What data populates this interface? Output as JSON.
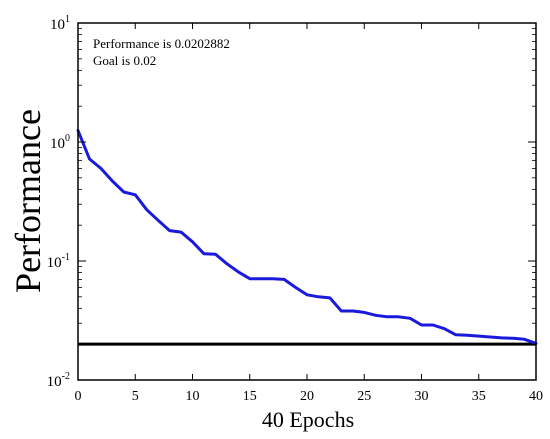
{
  "chart_data": {
    "type": "line",
    "title": "",
    "annotations": [
      "Performance is 0.0202882",
      "Goal is 0.02"
    ],
    "xlabel": "40 Epochs",
    "ylabel": "Performance",
    "xlim": [
      0,
      40
    ],
    "ylim": [
      0.01,
      10
    ],
    "yscale": "log",
    "grid": false,
    "x_ticks": [
      0,
      5,
      10,
      15,
      20,
      25,
      30,
      35,
      40
    ],
    "y_ticks": [
      {
        "value": 10,
        "base": "10",
        "exp": "1"
      },
      {
        "value": 1,
        "base": "10",
        "exp": "0"
      },
      {
        "value": 0.1,
        "base": "10",
        "exp": "-1"
      },
      {
        "value": 0.01,
        "base": "10",
        "exp": "-2"
      }
    ],
    "goal": {
      "value": 0.02,
      "color": "#000000"
    },
    "series": [
      {
        "color": "#1a1adc",
        "x": [
          0,
          1,
          2,
          3,
          4,
          5,
          6,
          7,
          8,
          9,
          10,
          11,
          12,
          13,
          14,
          15,
          16,
          17,
          18,
          19,
          20,
          21,
          22,
          23,
          24,
          25,
          26,
          27,
          28,
          29,
          30,
          31,
          32,
          33,
          34,
          35,
          36,
          37,
          38,
          39,
          40
        ],
        "y": [
          1.25,
          0.72,
          0.6,
          0.47,
          0.38,
          0.36,
          0.27,
          0.22,
          0.18,
          0.175,
          0.145,
          0.115,
          0.114,
          0.095,
          0.081,
          0.071,
          0.071,
          0.071,
          0.07,
          0.06,
          0.052,
          0.05,
          0.049,
          0.038,
          0.038,
          0.037,
          0.035,
          0.034,
          0.034,
          0.033,
          0.029,
          0.029,
          0.027,
          0.024,
          0.0238,
          0.0234,
          0.023,
          0.0226,
          0.0224,
          0.022,
          0.0202882
        ]
      }
    ]
  }
}
